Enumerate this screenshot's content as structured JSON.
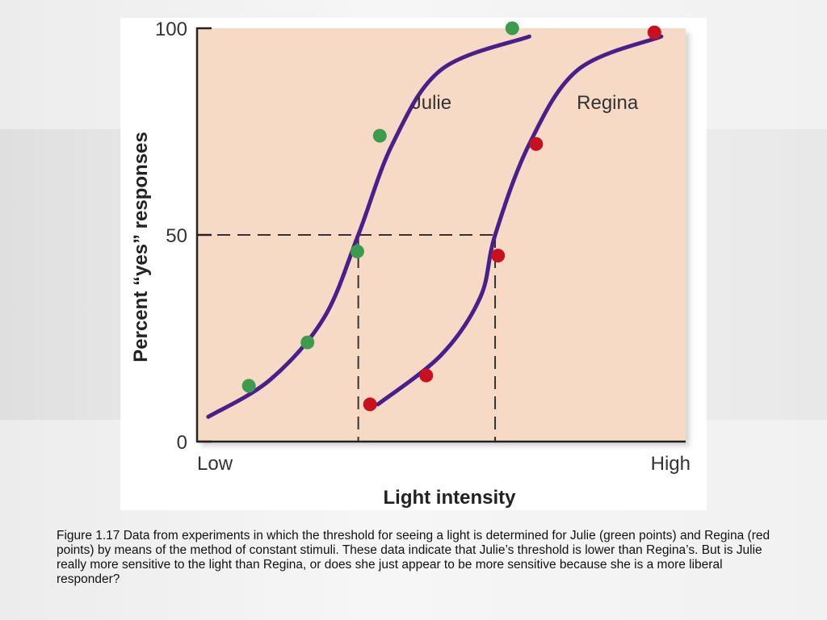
{
  "chart_data": {
    "type": "line",
    "xlabel": "Light intensity",
    "ylabel": "Percent “yes” responses",
    "x_tick_labels": [
      "Low",
      "High"
    ],
    "y_ticks": [
      0,
      50,
      100
    ],
    "ylim": [
      0,
      100
    ],
    "xlim": [
      0,
      10
    ],
    "grid": false,
    "series": [
      {
        "name": "Julie",
        "color": "#3c9b4c",
        "points": [
          {
            "x": 1.06,
            "y": 13.5
          },
          {
            "x": 2.26,
            "y": 24
          },
          {
            "x": 3.28,
            "y": 46
          },
          {
            "x": 3.74,
            "y": 74
          },
          {
            "x": 6.45,
            "y": 100
          }
        ],
        "curve": [
          {
            "x": 0.23,
            "y": 6
          },
          {
            "x": 1.5,
            "y": 15
          },
          {
            "x": 2.6,
            "y": 30
          },
          {
            "x": 3.3,
            "y": 50
          },
          {
            "x": 4.0,
            "y": 72
          },
          {
            "x": 5.0,
            "y": 90
          },
          {
            "x": 6.8,
            "y": 98
          }
        ],
        "threshold_x": 3.3
      },
      {
        "name": "Regina",
        "color": "#c8101e",
        "points": [
          {
            "x": 3.54,
            "y": 9
          },
          {
            "x": 4.69,
            "y": 16
          },
          {
            "x": 6.16,
            "y": 45
          },
          {
            "x": 6.94,
            "y": 72
          },
          {
            "x": 9.36,
            "y": 99
          }
        ],
        "curve": [
          {
            "x": 3.7,
            "y": 9
          },
          {
            "x": 5.0,
            "y": 21
          },
          {
            "x": 5.8,
            "y": 35
          },
          {
            "x": 6.1,
            "y": 50
          },
          {
            "x": 6.8,
            "y": 72
          },
          {
            "x": 7.8,
            "y": 90
          },
          {
            "x": 9.5,
            "y": 98
          }
        ],
        "threshold_x": 6.1
      }
    ],
    "threshold_line_y": 50,
    "curve_color": "#4a1f8c",
    "plot_background": "#f7dac5"
  },
  "caption": "Figure 1.17 Data from experiments in which the threshold for seeing a light is determined for Julie (green points) and Regina (red points) by means of the method of constant stimuli. These data indicate that Julie’s threshold is lower than Regina’s. But is Julie really more sensitive to the light than Regina, or does she just appear to be more sensitive because she is a more liberal responder?"
}
